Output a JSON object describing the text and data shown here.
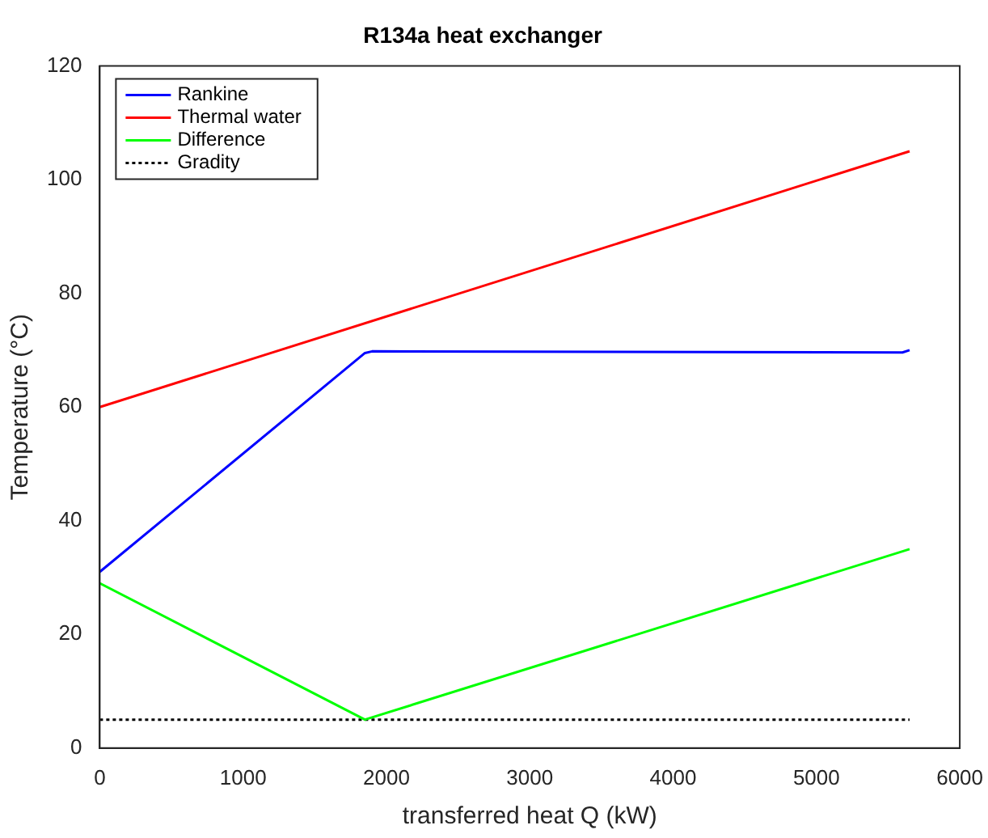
{
  "chart_data": {
    "type": "line",
    "title": "R134a heat exchanger",
    "xlabel": "transferred heat Q (kW)",
    "ylabel": "Temperature (°C)",
    "xlim": [
      0,
      6000
    ],
    "xticks": [
      0,
      1000,
      2000,
      3000,
      4000,
      5000,
      6000
    ],
    "ylim": [
      0,
      120
    ],
    "yticks": [
      0,
      20,
      40,
      60,
      80,
      100,
      120
    ],
    "grid": false,
    "legend": "top left",
    "marker": "none",
    "series": [
      {
        "name": "Rankine",
        "color": "#0000ff",
        "x": [
          0,
          1850,
          1900,
          5600,
          5650
        ],
        "values": [
          31,
          69.5,
          69.8,
          69.6,
          70
        ]
      },
      {
        "name": "Thermal water",
        "color": "#ff0000",
        "x": [
          0,
          5650
        ],
        "values": [
          60,
          105
        ]
      },
      {
        "name": "Difference",
        "color": "#00ff00",
        "x": [
          0,
          1850,
          5650
        ],
        "values": [
          29,
          5,
          35
        ]
      },
      {
        "name": "Gradity",
        "color": "#000000",
        "x": [
          0,
          5650
        ],
        "values": [
          5,
          5
        ],
        "line_style": "dotted"
      }
    ]
  }
}
